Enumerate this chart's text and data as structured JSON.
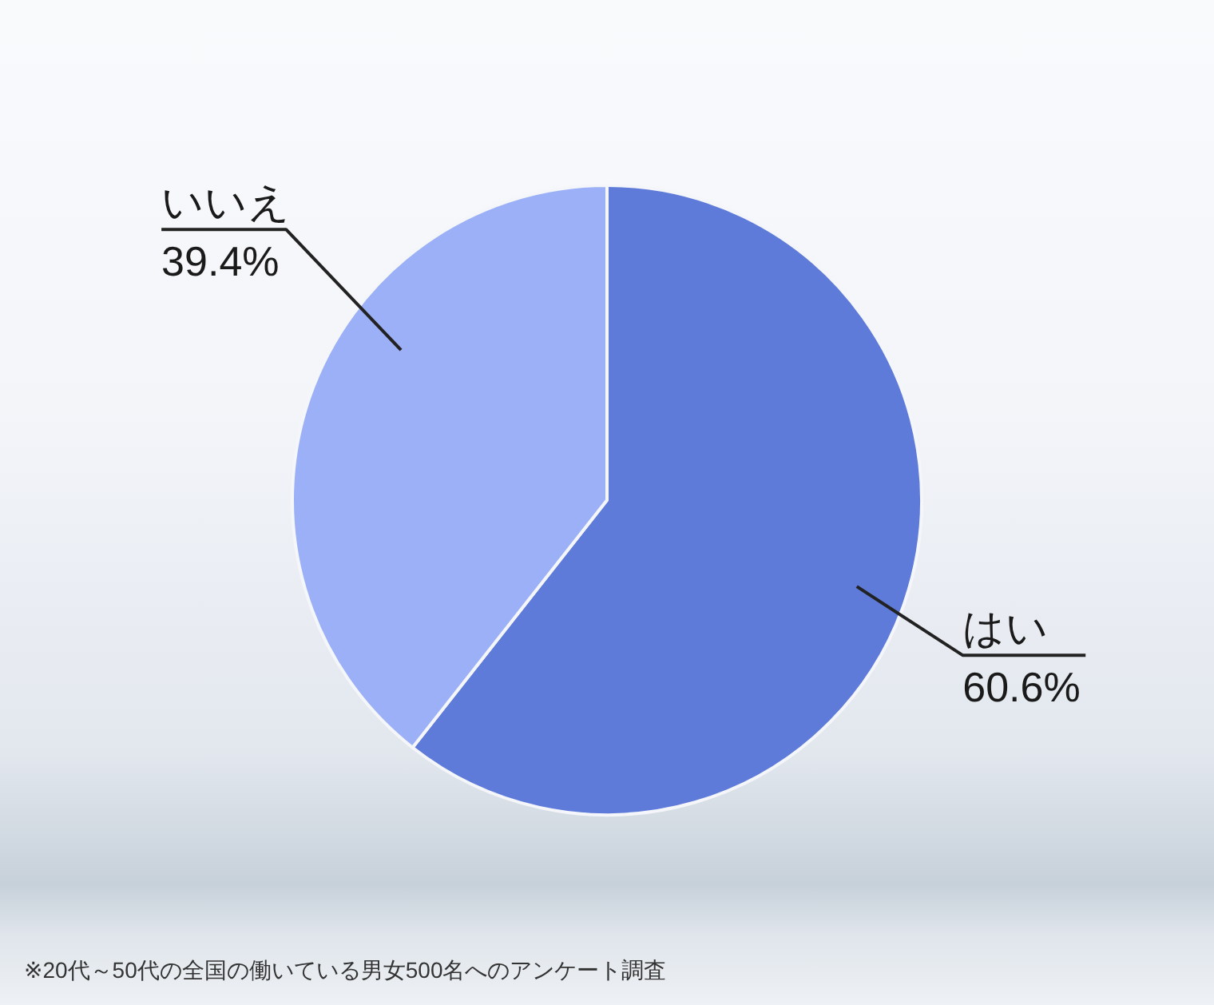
{
  "chart_data": {
    "type": "pie",
    "categories": [
      "はい",
      "いいえ"
    ],
    "values": [
      60.6,
      39.4
    ],
    "colors": [
      "#5f7bd9",
      "#9bb0f6"
    ],
    "value_labels": [
      "60.6%",
      "39.4%"
    ],
    "annotations": [
      "※20代～50代の全国の働いている男女500名へのアンケート調査"
    ]
  }
}
